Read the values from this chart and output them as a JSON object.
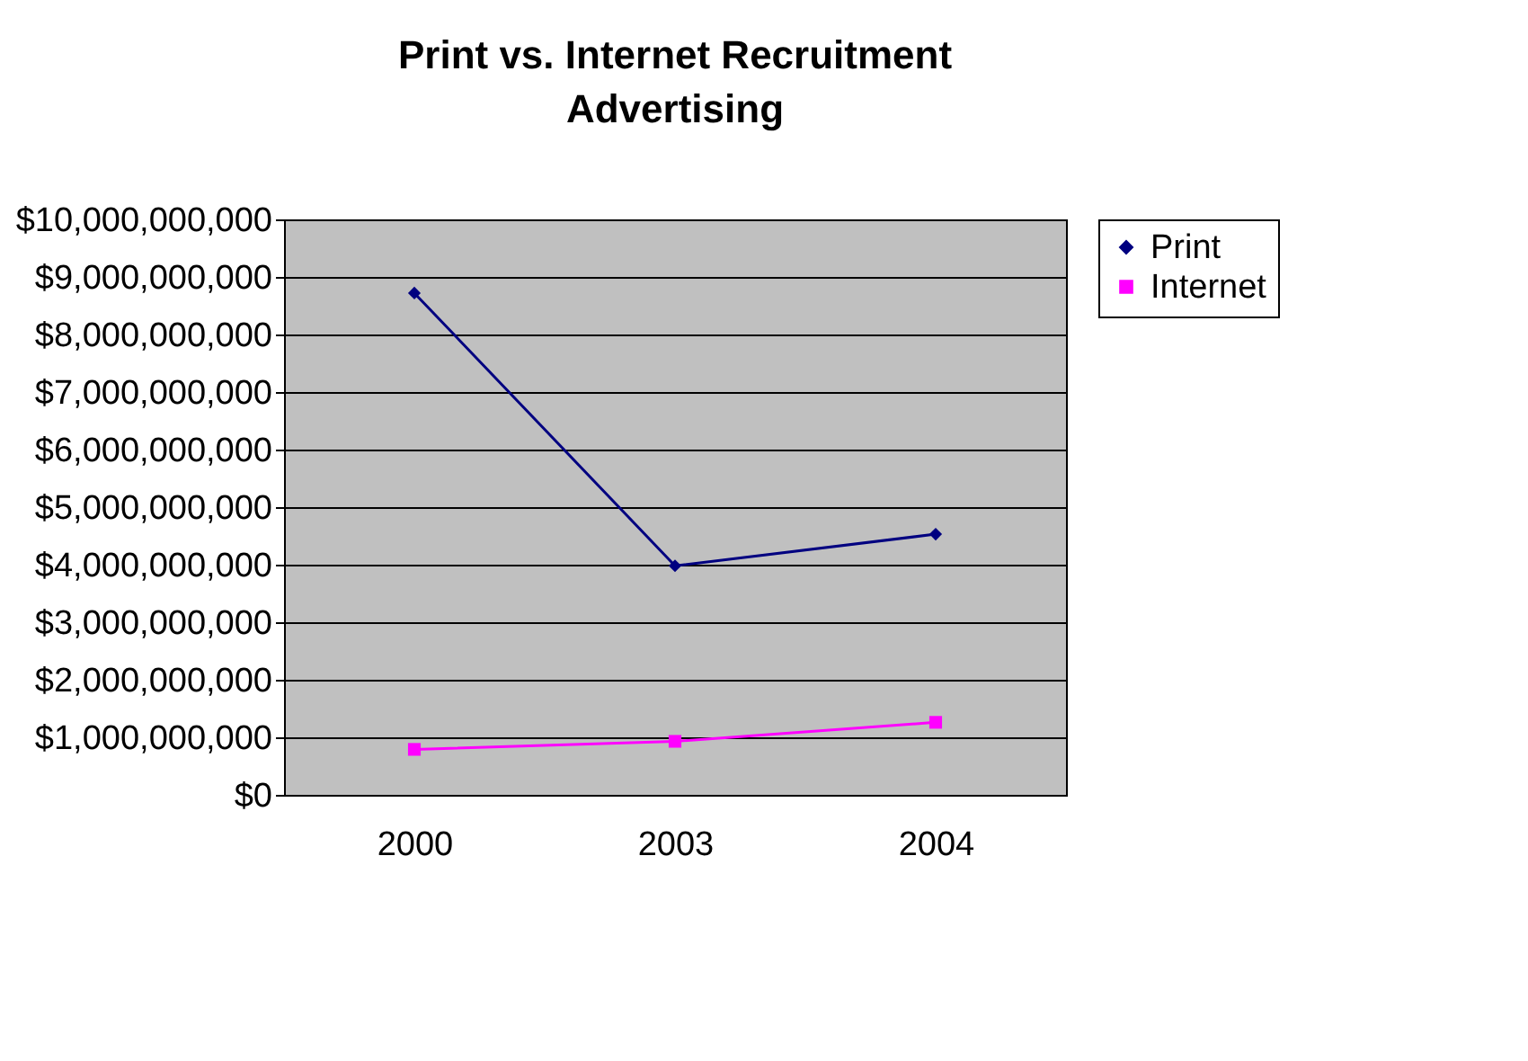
{
  "chart_data": {
    "type": "line",
    "title": "Print vs. Internet Recruitment Advertising",
    "categories": [
      "2000",
      "2003",
      "2004"
    ],
    "series": [
      {
        "name": "Print",
        "color": "#000080",
        "marker": "diamond",
        "values": [
          8720000000,
          3980000000,
          4530000000
        ]
      },
      {
        "name": "Internet",
        "color": "#ff00ff",
        "marker": "square",
        "values": [
          790000000,
          930000000,
          1260000000
        ]
      }
    ],
    "ylim": [
      0,
      10000000000
    ],
    "yticks": [
      {
        "value": 0,
        "label": "$0"
      },
      {
        "value": 1000000000,
        "label": "$1,000,000,000"
      },
      {
        "value": 2000000000,
        "label": "$2,000,000,000"
      },
      {
        "value": 3000000000,
        "label": "$3,000,000,000"
      },
      {
        "value": 4000000000,
        "label": "$4,000,000,000"
      },
      {
        "value": 5000000000,
        "label": "$5,000,000,000"
      },
      {
        "value": 6000000000,
        "label": "$6,000,000,000"
      },
      {
        "value": 7000000000,
        "label": "$7,000,000,000"
      },
      {
        "value": 8000000000,
        "label": "$8,000,000,000"
      },
      {
        "value": 9000000000,
        "label": "$9,000,000,000"
      },
      {
        "value": 10000000000,
        "label": "$10,000,000,000"
      }
    ],
    "grid": "y",
    "legend": "right"
  }
}
